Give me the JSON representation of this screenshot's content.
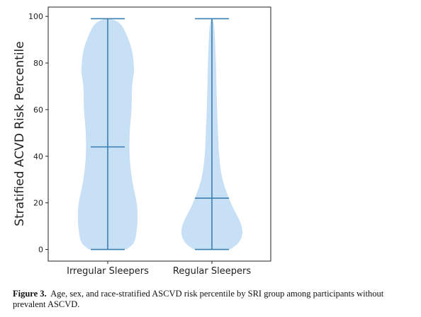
{
  "chart_data": {
    "type": "violin",
    "ylabel": "Stratified ACVD Risk Percentile",
    "xlabel": "",
    "ylim": [
      -5,
      104
    ],
    "yticks": [
      0,
      20,
      40,
      60,
      80,
      100
    ],
    "grid": false,
    "categories": [
      "Irregular Sleepers",
      "Regular Sleepers"
    ],
    "series": [
      {
        "category": "Irregular Sleepers",
        "min": 0,
        "median": 44,
        "max": 99,
        "density_profile": [
          {
            "y": 0,
            "w": 0.62
          },
          {
            "y": 3,
            "w": 0.86
          },
          {
            "y": 8,
            "w": 0.95
          },
          {
            "y": 14,
            "w": 0.98
          },
          {
            "y": 20,
            "w": 0.95
          },
          {
            "y": 30,
            "w": 0.8
          },
          {
            "y": 40,
            "w": 0.72
          },
          {
            "y": 50,
            "w": 0.72
          },
          {
            "y": 60,
            "w": 0.78
          },
          {
            "y": 70,
            "w": 0.8
          },
          {
            "y": 77,
            "w": 0.86
          },
          {
            "y": 85,
            "w": 0.8
          },
          {
            "y": 92,
            "w": 0.62
          },
          {
            "y": 97,
            "w": 0.4
          },
          {
            "y": 99,
            "w": 0.08
          }
        ]
      },
      {
        "category": "Regular Sleepers",
        "min": 0,
        "median": 22,
        "max": 99,
        "density_profile": [
          {
            "y": 0,
            "w": 0.6
          },
          {
            "y": 3,
            "w": 0.88
          },
          {
            "y": 7,
            "w": 1.0
          },
          {
            "y": 12,
            "w": 0.92
          },
          {
            "y": 20,
            "w": 0.62
          },
          {
            "y": 30,
            "w": 0.35
          },
          {
            "y": 40,
            "w": 0.24
          },
          {
            "y": 50,
            "w": 0.2
          },
          {
            "y": 60,
            "w": 0.17
          },
          {
            "y": 70,
            "w": 0.15
          },
          {
            "y": 80,
            "w": 0.13
          },
          {
            "y": 90,
            "w": 0.1
          },
          {
            "y": 96,
            "w": 0.07
          },
          {
            "y": 99,
            "w": 0.02
          }
        ]
      }
    ],
    "colors": {
      "body": "#c7e0f5",
      "lines": "#3b7fb0",
      "axis": "#222222"
    }
  },
  "caption": {
    "label": "Figure 3.",
    "text": "Age, sex, and race-stratified ASCVD risk percentile by SRI group among participants without prevalent ASCVD."
  }
}
